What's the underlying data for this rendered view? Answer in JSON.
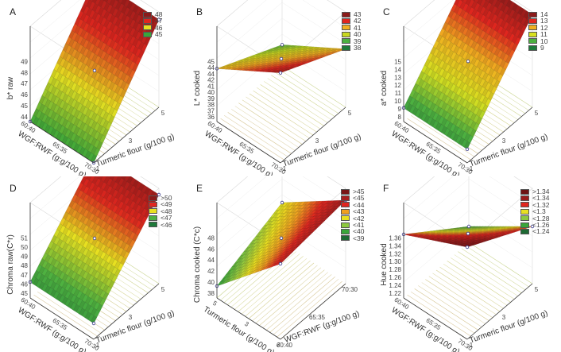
{
  "chart_data": [
    {
      "id": "A",
      "type": "surface3d",
      "panel_label": "A",
      "zlabel": "b* raw",
      "xlabel": "WGF:RWF (g:g/100 g)",
      "ylabel": "Turmeric flour (g/100 g)",
      "x_ticks": [
        "60:40",
        "65:35",
        "70:30"
      ],
      "y_ticks": [
        "1",
        "3",
        "5"
      ],
      "z_ticks": [
        "44",
        "45",
        "46",
        "47",
        "48",
        "49"
      ],
      "zlim": [
        44,
        49
      ],
      "corner_values": {
        "x60_y1": 44.0,
        "x70_y1": 44.0,
        "x60_y5": 48.6,
        "x70_y5": 48.6
      },
      "legend": [
        {
          "label": "48",
          "color": "#8b1a1a"
        },
        {
          "label": "47",
          "color": "#e0261e"
        },
        {
          "label": "46",
          "color": "#e8e020"
        },
        {
          "label": "45",
          "color": "#3aa63a"
        }
      ],
      "orientation": "standard"
    },
    {
      "id": "B",
      "type": "surface3d",
      "panel_label": "B",
      "zlabel": "L* cooked",
      "xlabel": "WGF:RWF (g:g/100 g)",
      "ylabel": "Turmeric flour (g/100 g)",
      "x_ticks": [
        "60:40",
        "65:35",
        "70:30"
      ],
      "y_ticks": [
        "1",
        "3",
        "5"
      ],
      "z_ticks": [
        "36",
        "37",
        "38",
        "39",
        "40",
        "41",
        "42",
        "44",
        "44",
        "45"
      ],
      "zlim": [
        36,
        45
      ],
      "corner_values": {
        "x60_y1": 44.5,
        "x70_y1": 41.0,
        "x60_y5": 41.5,
        "x70_y5": 38.0
      },
      "legend": [
        {
          "label": "43",
          "color": "#8b1a1a"
        },
        {
          "label": "42",
          "color": "#e0261e"
        },
        {
          "label": "41",
          "color": "#f0b020"
        },
        {
          "label": "40",
          "color": "#c8d820"
        },
        {
          "label": "39",
          "color": "#4cb040"
        },
        {
          "label": "38",
          "color": "#1e7a3a"
        }
      ],
      "orientation": "standard"
    },
    {
      "id": "C",
      "type": "surface3d",
      "panel_label": "C",
      "zlabel": "a* cooked",
      "xlabel": "WGF:RWF (g:g/100 g)",
      "ylabel": "Turmeric flour (g/100 g)",
      "x_ticks": [
        "60:40",
        "65:35",
        "70:30"
      ],
      "y_ticks": [
        "1",
        "3",
        "5"
      ],
      "z_ticks": [
        "8",
        "9",
        "10",
        "11",
        "12",
        "13",
        "14",
        "15"
      ],
      "zlim": [
        8,
        15
      ],
      "corner_values": {
        "x60_y1": 9.0,
        "x70_y1": 9.0,
        "x60_y5": 14.8,
        "x70_y5": 14.8
      },
      "legend": [
        {
          "label": "14",
          "color": "#8b1a1a"
        },
        {
          "label": "13",
          "color": "#e0261e"
        },
        {
          "label": "12",
          "color": "#f0b020"
        },
        {
          "label": "11",
          "color": "#d8e020"
        },
        {
          "label": "10",
          "color": "#4cb040"
        },
        {
          "label": "9",
          "color": "#1e7a3a"
        }
      ],
      "orientation": "standard"
    },
    {
      "id": "D",
      "type": "surface3d",
      "panel_label": "D",
      "zlabel": "Chroma raw(C*r)",
      "xlabel": "WGF:RWF (g:g/100 g)",
      "ylabel": "Turmeric flour (g/100 g)",
      "x_ticks": [
        "60:40",
        "65:35",
        "70:30"
      ],
      "y_ticks": [
        "1",
        "3",
        "5"
      ],
      "z_ticks": [
        "45",
        "46",
        "47",
        "48",
        "49",
        "50",
        "51"
      ],
      "zlim": [
        45,
        51
      ],
      "corner_values": {
        "x60_y1": 46.0,
        "x70_y1": 46.0,
        "x60_y5": 50.6,
        "x70_y5": 50.6
      },
      "legend": [
        {
          "label": ">50",
          "color": "#8b1a1a"
        },
        {
          "label": "<49",
          "color": "#e0261e"
        },
        {
          "label": "<48",
          "color": "#e8e020"
        },
        {
          "label": "<47",
          "color": "#4cb040"
        },
        {
          "label": "<46",
          "color": "#1e7a3a"
        }
      ],
      "orientation": "standard"
    },
    {
      "id": "E",
      "type": "surface3d",
      "panel_label": "E",
      "zlabel": "Chroma cooked (C*c)",
      "xlabel": "WGF:RWF (g:g/100 g)",
      "ylabel": "Turmeric flour (g/100 g)",
      "x_ticks": [
        "60:40",
        "65:35",
        "70:30"
      ],
      "y_ticks": [
        "5",
        "3",
        "1"
      ],
      "z_ticks": [
        "38",
        "40",
        "42",
        "44",
        "46",
        "48"
      ],
      "zlim": [
        36,
        48
      ],
      "corner_values": {
        "y5_x60": 45.5,
        "y5_x70": 46.5,
        "y1_x60": 37.5,
        "y1_x70": 41.0
      },
      "legend": [
        {
          "label": ">45",
          "color": "#7a1515"
        },
        {
          "label": "<45",
          "color": "#a81e1e"
        },
        {
          "label": "<44",
          "color": "#e0261e"
        },
        {
          "label": "<43",
          "color": "#f0a020"
        },
        {
          "label": "<42",
          "color": "#e8e020"
        },
        {
          "label": "<41",
          "color": "#8cc840"
        },
        {
          "label": "<40",
          "color": "#3aa63a"
        },
        {
          "label": "<39",
          "color": "#1e6a34"
        }
      ],
      "orientation": "rotated"
    },
    {
      "id": "F",
      "type": "surface3d",
      "panel_label": "F",
      "zlabel": "Hue cooked",
      "xlabel": "WGF:RWF (g:g/100 g)",
      "ylabel": "Turmeric flour (g/100 g)",
      "x_ticks": [
        "60:40",
        "65:35",
        "70:30"
      ],
      "y_ticks": [
        "1",
        "3",
        "5"
      ],
      "z_ticks": [
        "1.22",
        "1.24",
        "1.26",
        "1.28",
        "1.30",
        "1.32",
        "1.34",
        "1.36"
      ],
      "zlim": [
        1.21,
        1.36
      ],
      "corner_values": {
        "x60_y1": 1.355,
        "x70_y1": 1.31,
        "x60_y5": 1.3,
        "x70_y5": 1.235
      },
      "legend": [
        {
          "label": ">1.34",
          "color": "#6e1212"
        },
        {
          "label": "<1.34",
          "color": "#9a1a1a"
        },
        {
          "label": "<1.32",
          "color": "#e0261e"
        },
        {
          "label": "<1.3",
          "color": "#e8e020"
        },
        {
          "label": "<1.28",
          "color": "#8cc840"
        },
        {
          "label": "<1.26",
          "color": "#3aa63a"
        },
        {
          "label": "<1.24",
          "color": "#1e6a34"
        }
      ],
      "orientation": "standard"
    }
  ]
}
